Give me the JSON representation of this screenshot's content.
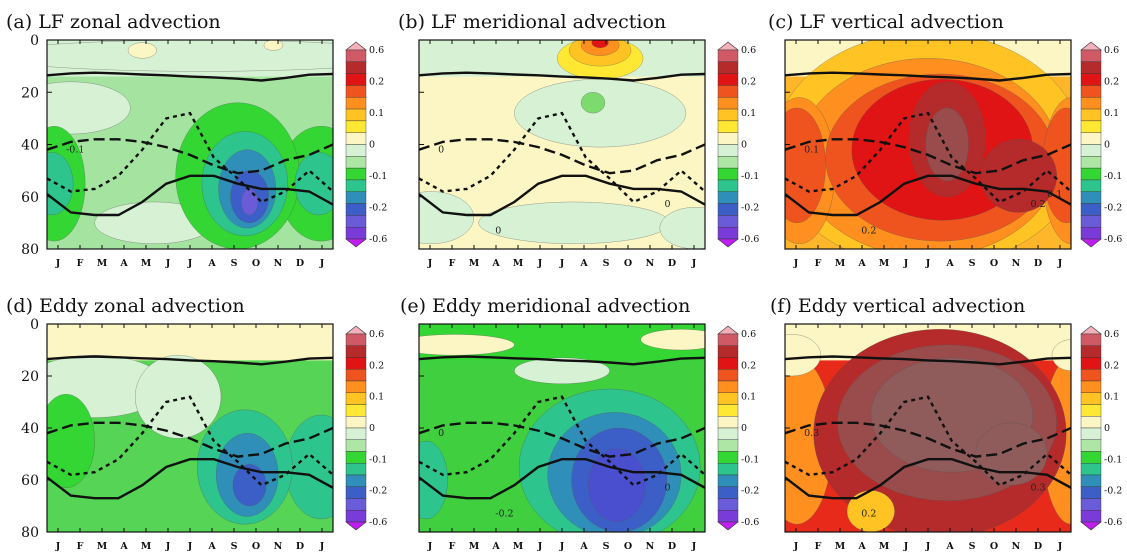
{
  "figure": {
    "months": [
      "J",
      "F",
      "M",
      "A",
      "M",
      "J",
      "J",
      "A",
      "S",
      "O",
      "N",
      "D",
      "J"
    ],
    "y_ticks": [
      "0",
      "20",
      "40",
      "60",
      "80"
    ],
    "colorbar_labels": [
      "0.6",
      "0.2",
      "0.1",
      "0",
      "-0.1",
      "-0.2",
      "-0.6"
    ],
    "colorbar_colors": [
      "#f4b0ba",
      "#cf5a66",
      "#b52a2a",
      "#e01414",
      "#f0541e",
      "#ff8f1e",
      "#ffc424",
      "#ffe833",
      "#fbf6c3",
      "#d7f1d5",
      "#aee6a6",
      "#33d633",
      "#2ec48e",
      "#2f8fb8",
      "#3c5fc7",
      "#6a5bd8",
      "#7a3cd8",
      "#c01ef0"
    ],
    "colors": {
      "frame": "#111111",
      "curve": "#111111",
      "contour": "#555555"
    }
  },
  "chart_data": [
    {
      "type": "heatmap",
      "panel": "a",
      "title": "(a) LF zonal advection",
      "x": [
        "J",
        "F",
        "M",
        "A",
        "M",
        "J",
        "J",
        "A",
        "S",
        "O",
        "N",
        "D",
        "J"
      ],
      "ylim": [
        0,
        80
      ],
      "contour_labels": [
        "-0.1"
      ],
      "dominant": "negative (green), minimum near Aug-Sep at 55-70"
    },
    {
      "type": "heatmap",
      "panel": "b",
      "title": "(b) LF meridional advection",
      "x": [
        "J",
        "F",
        "M",
        "A",
        "M",
        "J",
        "J",
        "A",
        "S",
        "O",
        "N",
        "D",
        "J"
      ],
      "ylim": [
        0,
        80
      ],
      "contour_labels": [
        "0",
        "0",
        "0"
      ],
      "dominant": "near zero, positive patch near Aug at top"
    },
    {
      "type": "heatmap",
      "panel": "c",
      "title": "(c) LF vertical advection",
      "x": [
        "J",
        "F",
        "M",
        "A",
        "M",
        "J",
        "J",
        "A",
        "S",
        "O",
        "N",
        "D",
        "J"
      ],
      "ylim": [
        0,
        80
      ],
      "contour_labels": [
        "0.1",
        "0.2",
        "0.2",
        "0.1"
      ],
      "dominant": "positive (red), maxima near Jul and Oct-Nov"
    },
    {
      "type": "heatmap",
      "panel": "d",
      "title": "(d) Eddy zonal advection",
      "x": [
        "J",
        "F",
        "M",
        "A",
        "M",
        "J",
        "J",
        "A",
        "S",
        "O",
        "N",
        "D",
        "J"
      ],
      "ylim": [
        0,
        80
      ],
      "contour_labels": [],
      "dominant": "negative (green), minimum near Sep at 55-65"
    },
    {
      "type": "heatmap",
      "panel": "e",
      "title": "(e) Eddy meridional advection",
      "x": [
        "J",
        "F",
        "M",
        "A",
        "M",
        "J",
        "J",
        "A",
        "S",
        "O",
        "N",
        "D",
        "J"
      ],
      "ylim": [
        0,
        80
      ],
      "contour_labels": [
        "0",
        "0",
        "-0.2"
      ],
      "dominant": "negative, minimum near Aug-Oct at 40-80"
    },
    {
      "type": "heatmap",
      "panel": "f",
      "title": "(f) Eddy vertical advection",
      "x": [
        "J",
        "F",
        "M",
        "A",
        "M",
        "J",
        "J",
        "A",
        "S",
        "O",
        "N",
        "D",
        "J"
      ],
      "ylim": [
        0,
        80
      ],
      "contour_labels": [
        "0.3",
        "0.3",
        "0.2"
      ],
      "dominant": "strongly positive, maximum May-Nov at 10-70"
    }
  ],
  "overlay_curves": {
    "x_month_index": [
      0,
      1,
      2,
      3,
      4,
      5,
      6,
      7,
      8,
      9,
      10,
      11,
      12
    ],
    "top_solid": [
      13.5,
      12.8,
      12.5,
      12.8,
      13.2,
      13.5,
      14,
      14.3,
      14.8,
      15.5,
      14.5,
      13.3,
      13
    ],
    "long_dash": [
      42,
      39,
      38,
      38,
      39,
      41,
      44,
      48,
      51,
      50,
      46,
      44,
      40
    ],
    "short_dash": [
      53,
      58,
      57,
      52,
      42,
      30,
      28,
      45,
      53,
      62,
      58,
      50,
      58
    ],
    "bottom_solid": [
      59,
      66,
      67,
      67,
      62,
      55,
      52,
      52,
      55,
      57,
      57,
      58,
      63
    ]
  }
}
